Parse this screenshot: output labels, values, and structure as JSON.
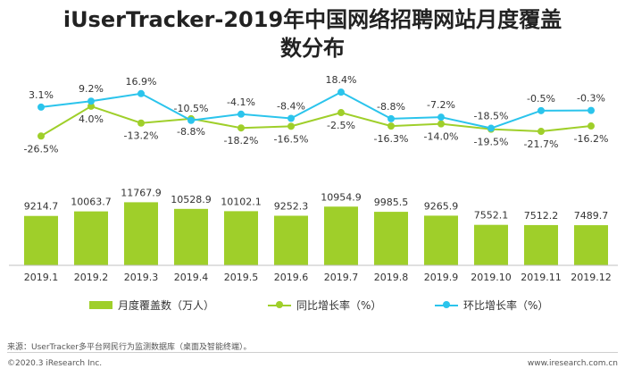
{
  "title": "iUserTracker-2019年中国网络招聘网站月度覆盖\n数分布",
  "chart_data": {
    "type": "bar",
    "categories": [
      "2019.1",
      "2019.2",
      "2019.3",
      "2019.4",
      "2019.5",
      "2019.6",
      "2019.7",
      "2019.8",
      "2019.9",
      "2019.10",
      "2019.11",
      "2019.12"
    ],
    "bar_series": {
      "name": "月度覆盖数（万人）",
      "color": "#9fcf2a",
      "values": [
        9214.7,
        10063.7,
        11767.9,
        10528.9,
        10102.1,
        9252.3,
        10954.9,
        9985.5,
        9265.9,
        7552.1,
        7512.2,
        7489.7
      ],
      "labels": [
        "9214.7",
        "10063.7",
        "11767.9",
        "10528.9",
        "10102.1",
        "9252.3",
        "10954.9",
        "9985.5",
        "9265.9",
        "7552.1",
        "7512.2",
        "7489.7"
      ]
    },
    "yoy_series": {
      "name": "同比增长率（%）",
      "color": "#9fcf2a",
      "values": [
        -26.5,
        4.0,
        -13.2,
        -8.8,
        -18.2,
        -16.5,
        -2.5,
        -16.3,
        -14.0,
        -19.5,
        -21.7,
        -16.2
      ],
      "labels": [
        "-26.5%",
        "4.0%",
        "-13.2%",
        "-8.8%",
        "-18.2%",
        "-16.5%",
        "-2.5%",
        "-16.3%",
        "-14.0%",
        "-19.5%",
        "-21.7%",
        "-16.2%"
      ]
    },
    "mom_series": {
      "name": "环比增长率（%）",
      "color": "#2bc4ec",
      "values": [
        3.1,
        9.2,
        16.9,
        -10.5,
        -4.1,
        -8.4,
        18.4,
        -8.8,
        -7.2,
        -18.5,
        -0.5,
        -0.3
      ],
      "labels": [
        "3.1%",
        "9.2%",
        "16.9%",
        "-10.5%",
        "-4.1%",
        "-8.4%",
        "18.4%",
        "-8.8%",
        "-7.2%",
        "-18.5%",
        "-0.5%",
        "-0.3%"
      ]
    },
    "bar_ylim": [
      0,
      20000
    ],
    "line_ylim": [
      -50,
      35
    ],
    "grid": false,
    "legend_position": "bottom"
  },
  "legend": {
    "bar_label": "月度覆盖数（万人）",
    "yoy_label": "同比增长率（%）",
    "mom_label": "环比增长率（%）"
  },
  "footer": {
    "source": "来源：UserTracker多平台网民行为监测数据库（桌面及智能终端）。",
    "copyright": "©2020.3 iResearch Inc.",
    "website": "www.iresearch.com.cn"
  }
}
